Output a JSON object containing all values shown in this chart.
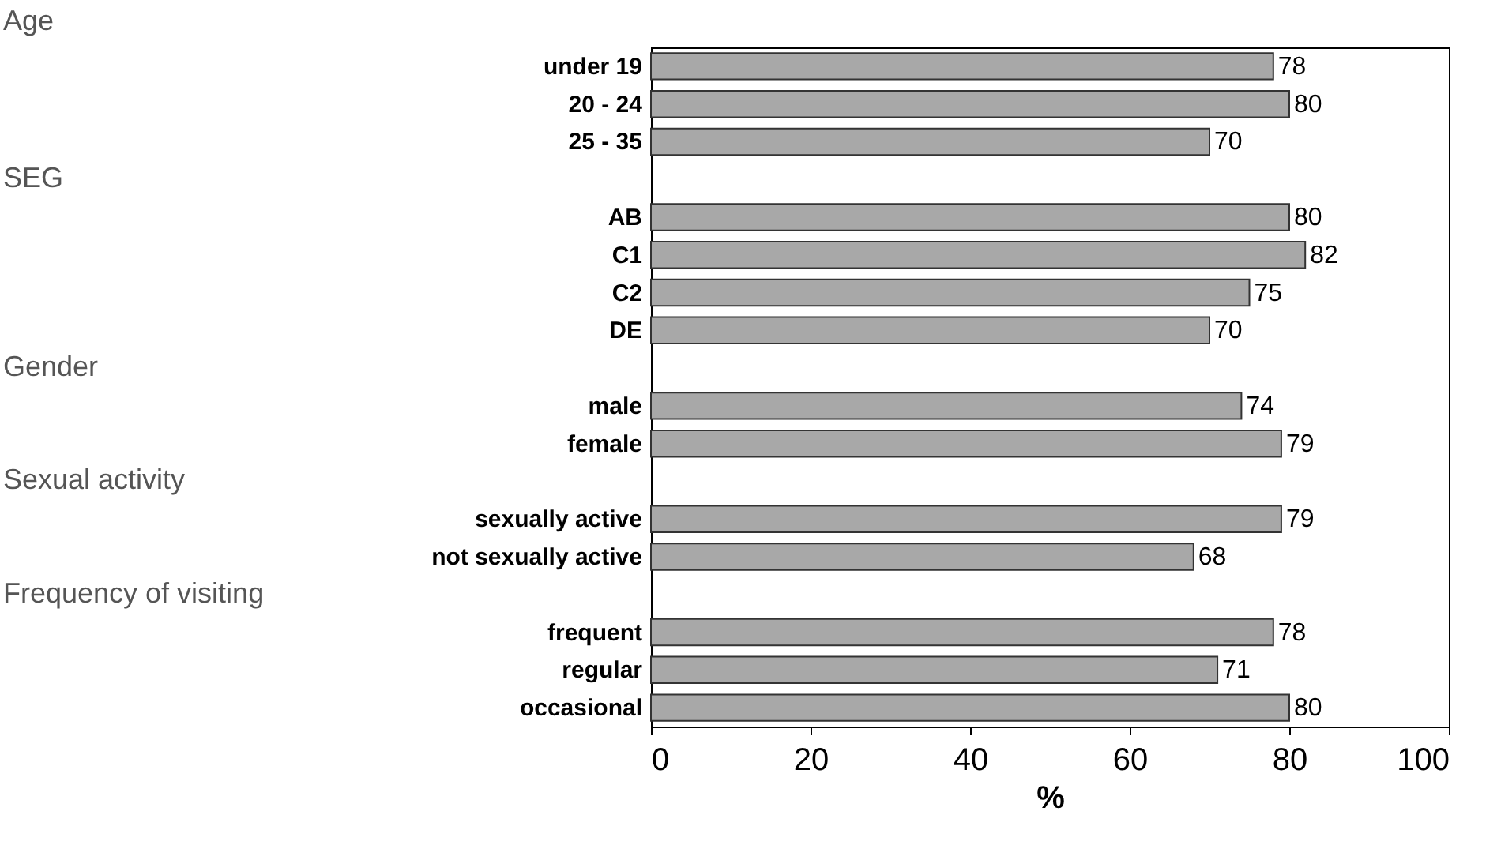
{
  "chart_data": {
    "type": "bar",
    "orientation": "horizontal",
    "categories": [
      "under 19",
      "20 - 24",
      "25 - 35",
      null,
      "AB",
      "C1",
      "C2",
      "DE",
      null,
      "male",
      "female",
      null,
      "sexually active",
      "not sexually active",
      null,
      "frequent",
      "regular",
      "occasional"
    ],
    "values": [
      78,
      80,
      70,
      null,
      80,
      82,
      75,
      70,
      null,
      74,
      79,
      null,
      79,
      68,
      null,
      78,
      71,
      80
    ],
    "color": "#a8a8a8",
    "xlabel": "%",
    "xlim": [
      0,
      100
    ],
    "xticks": [
      0,
      20,
      40,
      60,
      80,
      100
    ],
    "data_labels": true,
    "grid": false,
    "annotations": [
      "Age",
      "SEG",
      "Gender",
      "Sexual activity",
      "Frequency of visiting"
    ]
  }
}
